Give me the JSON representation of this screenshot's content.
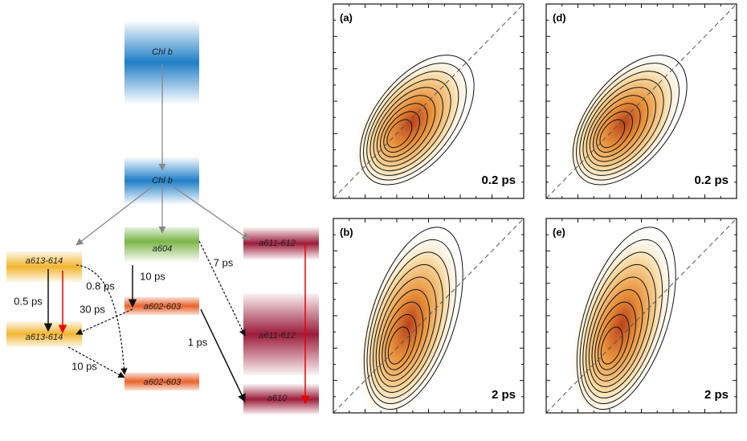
{
  "diagram": {
    "levels": [
      "Chl b",
      "Chl b",
      "a604",
      "a613-614",
      "a613-614",
      "a602-603",
      "a602-603",
      "a611-612",
      "a611-612",
      "a610"
    ],
    "transfer_times": [
      "0.5 ps",
      "0.8 ps",
      "10 ps",
      "30 ps",
      "7 ps",
      "1 ps",
      "10 ps"
    ]
  },
  "panels": [
    {
      "letter": "(a)",
      "time": "0.2 ps"
    },
    {
      "letter": "(d)",
      "time": "0.2 ps"
    },
    {
      "letter": "(b)",
      "time": "2 ps"
    },
    {
      "letter": "(e)",
      "time": "2 ps"
    }
  ]
}
